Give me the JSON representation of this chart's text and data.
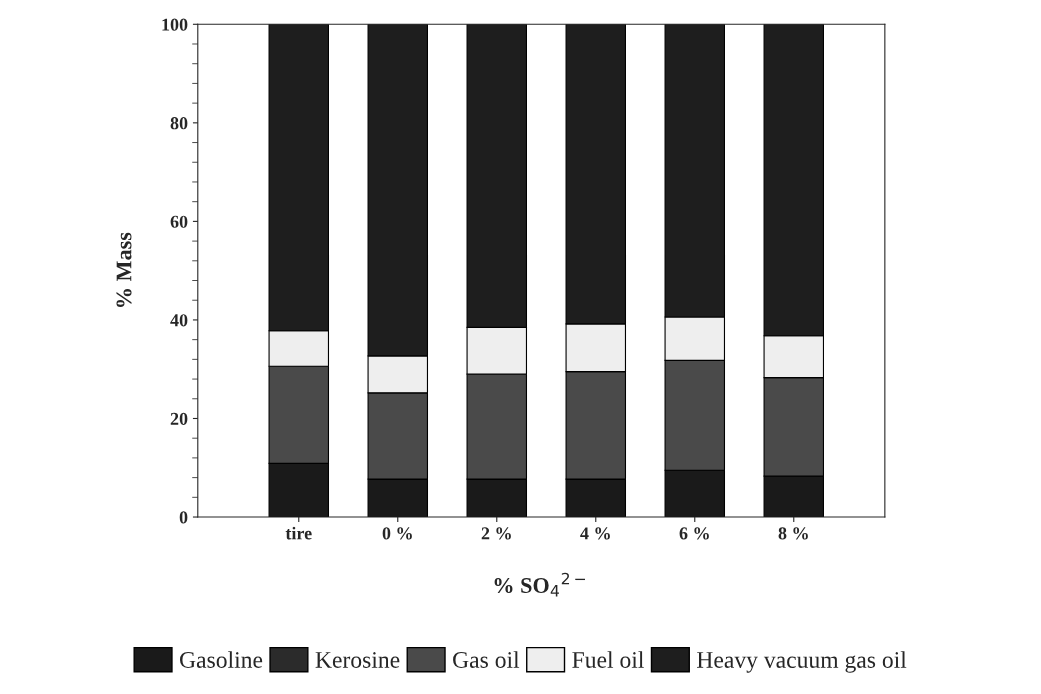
{
  "chart_data": {
    "type": "bar",
    "stacked": true,
    "ylabel": "% Mass",
    "xlabel": "% SO$_{4}$$^{2−}$",
    "categories": [
      "tire",
      "0 %",
      "2 %",
      "4 %",
      "6 %",
      "8 %"
    ],
    "series": [
      {
        "name": "Gasoline",
        "color": "#1a1a1a",
        "values": [
          10.9,
          7.7,
          7.7,
          7.7,
          9.5,
          8.3
        ]
      },
      {
        "name": "Kerosine",
        "color": "#2b2b2b",
        "values": [
          0,
          0,
          0,
          0,
          0,
          0
        ]
      },
      {
        "name": "Gas oil",
        "color": "#4a4a4a",
        "values": [
          19.7,
          17.5,
          21.3,
          21.8,
          22.3,
          20.0
        ]
      },
      {
        "name": "Fuel oil",
        "color": "#eeeeee",
        "values": [
          7.2,
          7.5,
          9.5,
          9.7,
          8.8,
          8.5
        ]
      },
      {
        "name": "Heavy vacuum gas oil",
        "color": "#1e1e1e",
        "values": [
          62.2,
          67.3,
          61.5,
          60.8,
          59.4,
          63.2
        ]
      }
    ],
    "ylim": [
      0,
      100
    ],
    "yticks": [
      0,
      20,
      40,
      60,
      80,
      100
    ],
    "grid": false,
    "legend": "bottom"
  }
}
